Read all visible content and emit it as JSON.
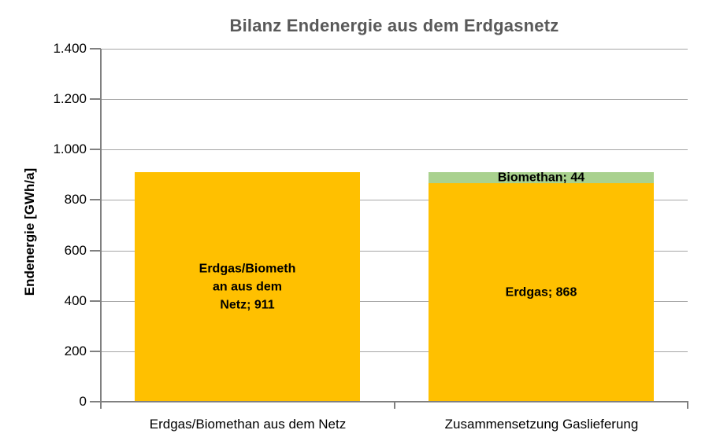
{
  "chart_data": {
    "type": "bar",
    "stacked": true,
    "title": "Bilanz Endenergie aus dem Erdgasnetz",
    "xlabel": "",
    "ylabel": "Endenergie [GWh/a]",
    "ylim": [
      0,
      1400
    ],
    "ytick_step": 200,
    "yticks": [
      {
        "value": 0,
        "label": "0"
      },
      {
        "value": 200,
        "label": "200"
      },
      {
        "value": 400,
        "label": "400"
      },
      {
        "value": 600,
        "label": "600"
      },
      {
        "value": 800,
        "label": "800"
      },
      {
        "value": 1000,
        "label": "1.000"
      },
      {
        "value": 1200,
        "label": "1.200"
      },
      {
        "value": 1400,
        "label": "1.400"
      }
    ],
    "grid": true,
    "legend": "none",
    "background": "#FFFFFF",
    "categories": [
      "Erdgas/Biomethan aus dem Netz",
      "Zusammensetzung Gaslieferung"
    ],
    "bars": [
      {
        "category": "Erdgas/Biomethan aus dem Netz",
        "segments": [
          {
            "name": "erdgas-biomethan-netz",
            "value": 911,
            "color": "#FFC000",
            "label_lines": [
              "Erdgas/Biometh",
              "an aus dem",
              "Netz; 911"
            ]
          }
        ]
      },
      {
        "category": "Zusammensetzung Gaslieferung",
        "segments": [
          {
            "name": "erdgas",
            "value": 868,
            "color": "#FFC000",
            "label_lines": [
              "Erdgas; 868"
            ]
          },
          {
            "name": "biomethan",
            "value": 44,
            "color": "#A9D18E",
            "label_lines": [
              "Biomethan; 44"
            ]
          }
        ]
      }
    ],
    "colors": {
      "erdgas": "#FFC000",
      "biomethan": "#A9D18E",
      "title_text": "#595959",
      "axis_line": "#808080",
      "gridline": "#A6A6A6",
      "label_text": "#000000"
    }
  }
}
